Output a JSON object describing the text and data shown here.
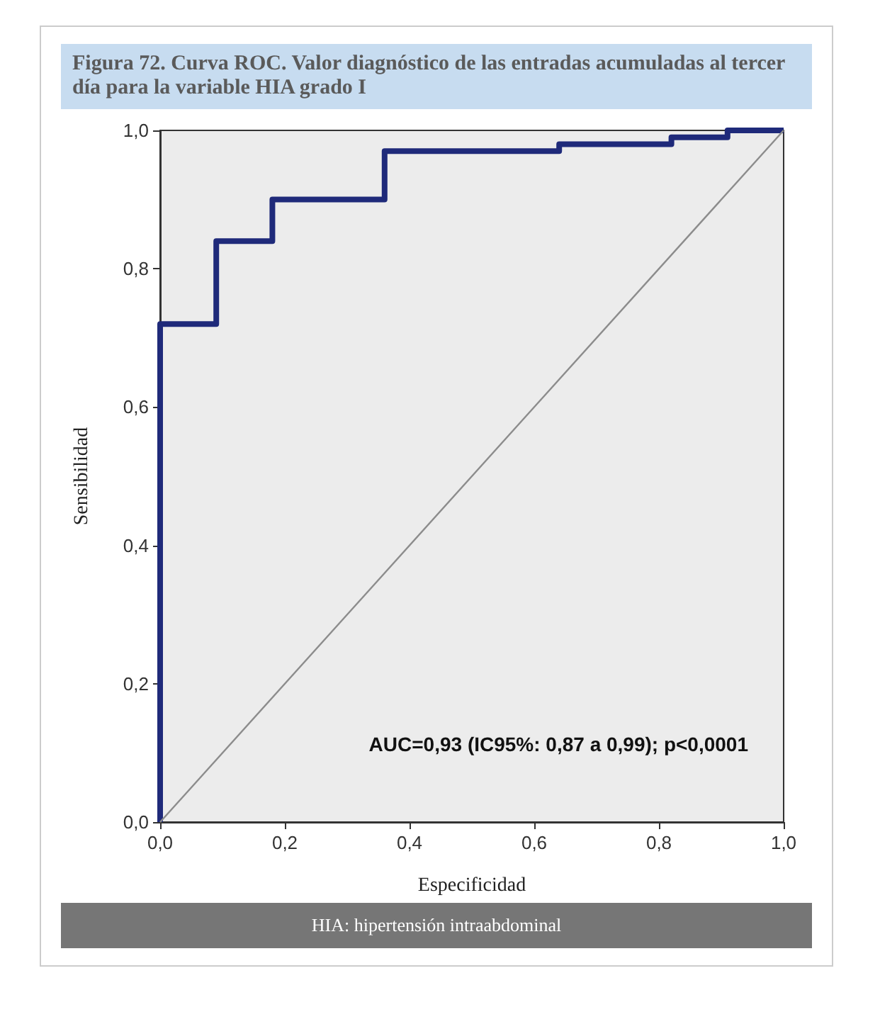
{
  "chart_data": {
    "type": "line",
    "title": "Figura 72. Curva ROC. Valor diagnóstico de las entradas acumuladas al tercer día para la variable HIA grado I",
    "xlabel": "Especificidad",
    "ylabel": "Sensibilidad",
    "annotations": [
      "AUC=0,93 (IC95%: 0,87 a 0,99); p<0,0001",
      "HIA: hipertensión intraabdominal"
    ],
    "series": [
      {
        "type": "step",
        "color": "#1f2a7a",
        "x": [
          0,
          0,
          0.09,
          0.09,
          0.18,
          0.18,
          0.36,
          0.36,
          0.64,
          0.64,
          0.82,
          0.82,
          0.91,
          0.91,
          1
        ],
        "values": [
          0,
          0.72,
          0.72,
          0.84,
          0.84,
          0.9,
          0.9,
          0.97,
          0.97,
          0.98,
          0.98,
          0.99,
          0.99,
          1,
          1
        ]
      },
      {
        "color": "#8c8c8c",
        "x": [
          0,
          1
        ],
        "values": [
          0,
          1
        ]
      }
    ],
    "xlim": [
      0,
      1
    ],
    "ylim": [
      0,
      1
    ],
    "xticks": [
      {
        "value": 0,
        "label": "0,0"
      },
      {
        "value": 0.2,
        "label": "0,2"
      },
      {
        "value": 0.4,
        "label": "0,4"
      },
      {
        "value": 0.6,
        "label": "0,6"
      },
      {
        "value": 0.8,
        "label": "0,8"
      },
      {
        "value": 1,
        "label": "1,0"
      }
    ],
    "yticks": [
      {
        "value": 0,
        "label": "0,0"
      },
      {
        "value": 0.2,
        "label": "0,2"
      },
      {
        "value": 0.4,
        "label": "0,4"
      },
      {
        "value": 0.6,
        "label": "0,6"
      },
      {
        "value": 0.8,
        "label": "0,8"
      },
      {
        "value": 1,
        "label": "1,0"
      }
    ],
    "grid": false,
    "marker": "none"
  }
}
